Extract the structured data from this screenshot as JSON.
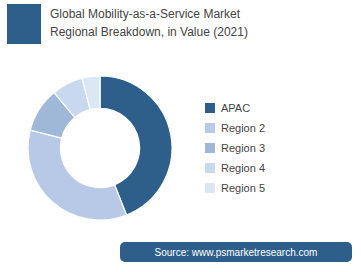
{
  "chart_data": {
    "type": "donut",
    "title": "Global Mobility-as-a-Service Market",
    "subtitle": "Regional Breakdown, in Value (2021)",
    "categories": [
      "APAC",
      "Region 2",
      "Region 3",
      "Region 4",
      "Region 5"
    ],
    "values": [
      44,
      35,
      10,
      7,
      4
    ],
    "colors": [
      "#2d5f8a",
      "#b8c9e8",
      "#a0b8d8",
      "#c8d8ee",
      "#dce7f5"
    ],
    "legend": "right",
    "annotations": [
      "Source: www.psmarketresearch.com"
    ]
  }
}
